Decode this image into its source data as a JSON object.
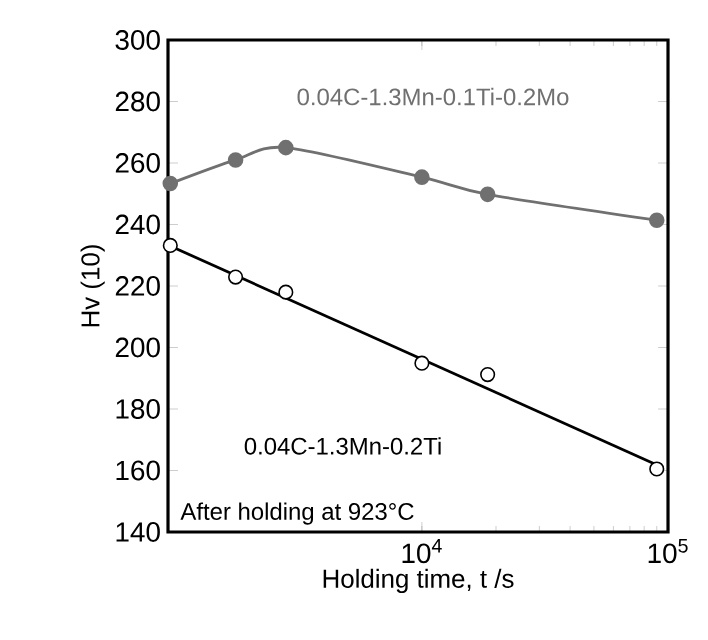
{
  "chart_data": {
    "type": "line",
    "xlabel": "Holding time, t /s",
    "ylabel": "Hv (10)",
    "log": "x",
    "grid": false,
    "xlim": [
      930,
      100000
    ],
    "xticks": [
      {
        "value": 10000,
        "label": "10$^{4}$"
      },
      {
        "value": 100000,
        "label": "10$^{5}$"
      }
    ],
    "ylim": [
      140,
      300
    ],
    "yticks": [
      140,
      160,
      180,
      200,
      220,
      240,
      260,
      280,
      300
    ],
    "x": [
      950,
      1750,
      2800,
      10000,
      18500,
      90000
    ],
    "series": [
      {
        "name": "0.04C-1.3Mn-0.1Ti-0.2Mo",
        "color": "#707070",
        "marker": "circle",
        "values": [
          253.3,
          261,
          265,
          255.4,
          249.8,
          241.4
        ]
      },
      {
        "name": "0.04C-1.3Mn-0.2Ti",
        "type": "scatter",
        "color": "#000000",
        "marker": "circle",
        "values": [
          233.2,
          222.9,
          218,
          194.9,
          191.2,
          160.5
        ]
      },
      {
        "color": "#000000",
        "marker": "none",
        "x": [
          950,
          95000
        ],
        "values": [
          233,
          161
        ]
      }
    ],
    "annotations": [
      "After holding at 923°C"
    ]
  }
}
